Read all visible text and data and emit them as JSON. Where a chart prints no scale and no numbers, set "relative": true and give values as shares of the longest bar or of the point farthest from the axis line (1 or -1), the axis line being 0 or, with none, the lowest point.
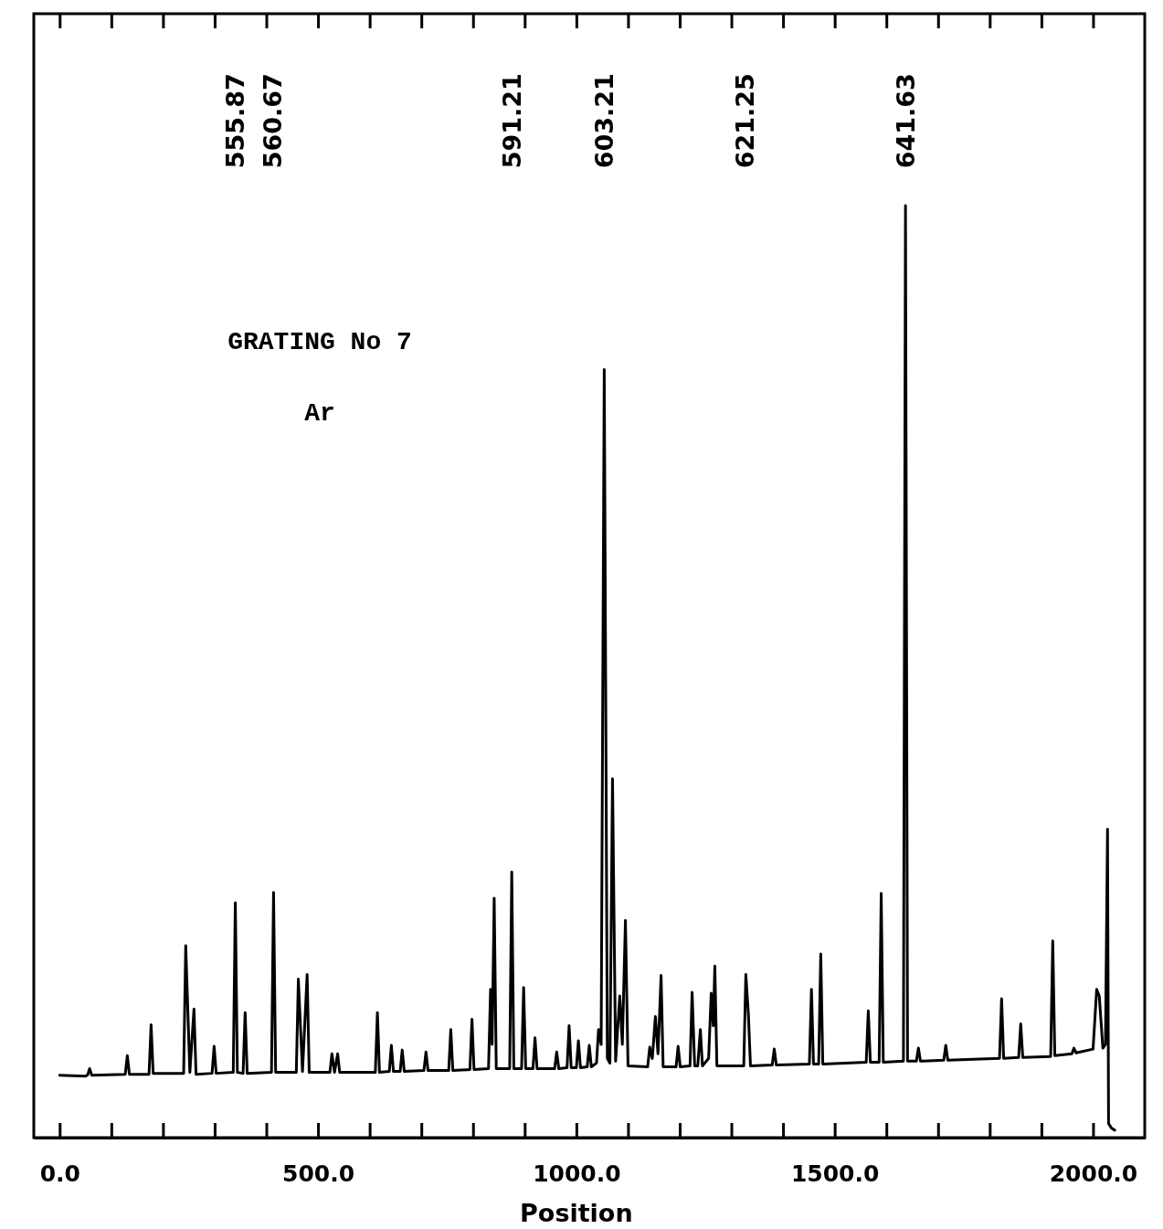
{
  "chart_data": {
    "type": "line",
    "relative": true,
    "xlabel": "Position",
    "xlim": [
      -50,
      2100
    ],
    "xticks": [
      {
        "value": 0,
        "label": "0.0"
      },
      {
        "value": 100,
        "label": null
      },
      {
        "value": 200,
        "label": null
      },
      {
        "value": 300,
        "label": null
      },
      {
        "value": 400,
        "label": null
      },
      {
        "value": 500,
        "label": "500.0"
      },
      {
        "value": 600,
        "label": null
      },
      {
        "value": 700,
        "label": null
      },
      {
        "value": 800,
        "label": null
      },
      {
        "value": 900,
        "label": null
      },
      {
        "value": 1000,
        "label": "1000.0"
      },
      {
        "value": 1100,
        "label": null
      },
      {
        "value": 1200,
        "label": null
      },
      {
        "value": 1300,
        "label": null
      },
      {
        "value": 1400,
        "label": null
      },
      {
        "value": 1500,
        "label": "1500.0"
      },
      {
        "value": 1600,
        "label": null
      },
      {
        "value": 1700,
        "label": null
      },
      {
        "value": 1800,
        "label": null
      },
      {
        "value": 1900,
        "label": null
      },
      {
        "value": 2000,
        "label": "2000.0"
      }
    ],
    "tick_labels": "x",
    "grid": false,
    "marker": "none",
    "line_style": "solid",
    "annotations": [
      "GRATING No 7",
      "Ar",
      "555.87",
      "560.67",
      "591.21",
      "603.21",
      "621.25",
      "641.63"
    ],
    "series": [
      {
        "color": "#000000",
        "x": [
          0,
          50,
          54,
          58,
          62,
          127,
          131,
          135,
          173,
          177,
          181,
          240,
          244,
          252,
          260,
          264,
          295,
          299,
          303,
          336,
          340,
          344,
          355,
          359,
          363,
          410,
          414,
          418,
          458,
          462,
          470,
          479,
          483,
          523,
          527,
          532,
          538,
          542,
          611,
          615,
          619,
          638,
          642,
          646,
          659,
          663,
          667,
          705,
          709,
          713,
          753,
          757,
          761,
          794,
          798,
          802,
          830,
          834,
          837,
          841,
          845,
          871,
          875,
          879,
          894,
          898,
          902,
          916,
          920,
          924,
          958,
          962,
          966,
          982,
          986,
          990,
          1000,
          1004,
          1008,
          1021,
          1025,
          1029,
          1039,
          1043,
          1048,
          1054,
          1060,
          1065,
          1070,
          1076,
          1084,
          1089,
          1095,
          1100,
          1138,
          1142,
          1147,
          1153,
          1158,
          1164,
          1168,
          1193,
          1197,
          1201,
          1220,
          1224,
          1229,
          1235,
          1240,
          1244,
          1256,
          1261,
          1265,
          1268,
          1272,
          1324,
          1328,
          1333,
          1337,
          1379,
          1383,
          1387,
          1451,
          1455,
          1459,
          1469,
          1473,
          1477,
          1561,
          1565,
          1569,
          1586,
          1590,
          1594,
          1633,
          1637,
          1641,
          1658,
          1662,
          1666,
          1711,
          1715,
          1719,
          1819,
          1823,
          1827,
          1856,
          1860,
          1864,
          1918,
          1922,
          1926,
          1959,
          1963,
          1967,
          2000,
          2007,
          2012,
          2019,
          2024,
          2028,
          2030,
          2036,
          2042
        ],
        "values": [
          0.067,
          0.066,
          0.067,
          0.074,
          0.067,
          0.068,
          0.088,
          0.068,
          0.068,
          0.121,
          0.069,
          0.069,
          0.206,
          0.07,
          0.138,
          0.068,
          0.069,
          0.098,
          0.069,
          0.07,
          0.252,
          0.07,
          0.069,
          0.134,
          0.069,
          0.07,
          0.263,
          0.07,
          0.07,
          0.17,
          0.071,
          0.175,
          0.07,
          0.07,
          0.09,
          0.07,
          0.09,
          0.07,
          0.07,
          0.134,
          0.07,
          0.071,
          0.099,
          0.071,
          0.071,
          0.094,
          0.071,
          0.072,
          0.092,
          0.072,
          0.072,
          0.116,
          0.072,
          0.073,
          0.127,
          0.073,
          0.074,
          0.159,
          0.1,
          0.257,
          0.074,
          0.074,
          0.285,
          0.074,
          0.074,
          0.161,
          0.074,
          0.074,
          0.107,
          0.074,
          0.074,
          0.092,
          0.074,
          0.075,
          0.12,
          0.075,
          0.075,
          0.104,
          0.075,
          0.076,
          0.099,
          0.076,
          0.08,
          0.116,
          0.1,
          0.824,
          0.085,
          0.08,
          0.385,
          0.082,
          0.152,
          0.1,
          0.233,
          0.077,
          0.076,
          0.097,
          0.085,
          0.13,
          0.09,
          0.174,
          0.076,
          0.076,
          0.098,
          0.076,
          0.077,
          0.156,
          0.077,
          0.077,
          0.116,
          0.077,
          0.085,
          0.155,
          0.12,
          0.184,
          0.077,
          0.077,
          0.175,
          0.132,
          0.077,
          0.078,
          0.095,
          0.078,
          0.079,
          0.159,
          0.079,
          0.079,
          0.197,
          0.079,
          0.081,
          0.136,
          0.081,
          0.081,
          0.262,
          0.081,
          0.082,
          1.0,
          0.082,
          0.082,
          0.096,
          0.082,
          0.083,
          0.099,
          0.083,
          0.085,
          0.149,
          0.085,
          0.086,
          0.122,
          0.086,
          0.087,
          0.211,
          0.088,
          0.09,
          0.096,
          0.091,
          0.095,
          0.159,
          0.152,
          0.096,
          0.1,
          0.331,
          0.015,
          0.01,
          0.008
        ]
      }
    ]
  }
}
